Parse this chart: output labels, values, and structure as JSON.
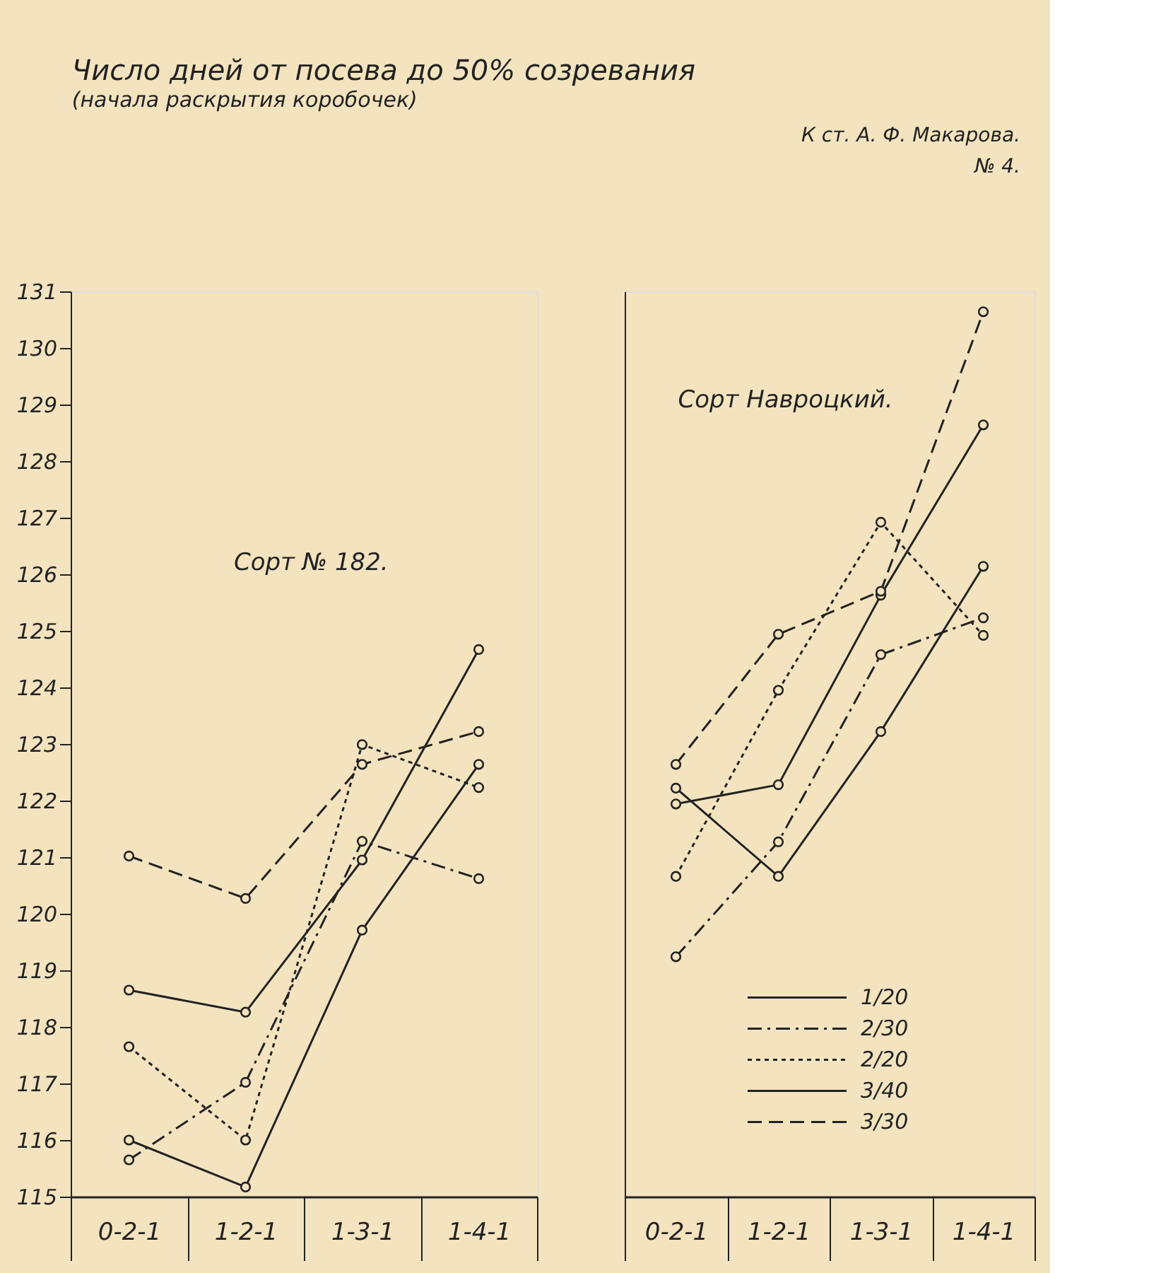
{
  "chart_data": [
    {
      "type": "line",
      "title": "Число дней от посева до 50% созревания",
      "subtitle": "(начала раскрытия коробочек)",
      "categories": [
        "0-2-1",
        "1-2-1",
        "1-3-1",
        "1-4-1"
      ],
      "ylim": [
        115,
        131
      ],
      "yticks": [
        115,
        116,
        117,
        118,
        119,
        120,
        121,
        122,
        123,
        124,
        125,
        126,
        127,
        128,
        129,
        130,
        131
      ],
      "grid": false,
      "legend": false,
      "marker": "circle",
      "annotations": [
        "Сорт № 182."
      ],
      "series": [
        {
          "color": "#222222",
          "line_style": "solid",
          "values": [
            116.0,
            115.17,
            119.71,
            122.64
          ]
        },
        {
          "color": "#222222",
          "line_style": "dashdot",
          "values": [
            115.65,
            117.02,
            121.28,
            120.62
          ]
        },
        {
          "color": "#222222",
          "line_style": "dotted",
          "values": [
            117.65,
            116.0,
            122.99,
            122.23
          ]
        },
        {
          "color": "#222222",
          "line_style": "solid",
          "values": [
            118.65,
            118.26,
            120.95,
            124.67
          ]
        },
        {
          "color": "#222222",
          "line_style": "dashed",
          "values": [
            121.02,
            120.27,
            122.64,
            123.22
          ]
        }
      ]
    },
    {
      "type": "line",
      "categories": [
        "0-2-1",
        "1-2-1",
        "1-3-1",
        "1-4-1"
      ],
      "ylim": [
        115,
        131
      ],
      "tick_labels": "x",
      "grid": false,
      "legend": "bottom",
      "marker": "circle",
      "annotations": [
        "Сорт Навроцкий.",
        "К ст. А. Ф. Макарова.",
        "№ 4."
      ],
      "series": [
        {
          "name": "1/20",
          "color": "#222222",
          "line_style": "solid",
          "values": [
            122.22,
            120.66,
            123.22,
            126.14
          ]
        },
        {
          "name": "2/30",
          "color": "#222222",
          "line_style": "dashdot",
          "values": [
            119.24,
            121.27,
            124.58,
            125.23
          ]
        },
        {
          "name": "2/20",
          "color": "#222222",
          "line_style": "dotted",
          "values": [
            120.66,
            123.95,
            126.92,
            124.92
          ]
        },
        {
          "name": "3/40",
          "color": "#222222",
          "line_style": "solid",
          "values": [
            121.94,
            122.28,
            125.63,
            128.64
          ]
        },
        {
          "name": "3/30",
          "color": "#222222",
          "line_style": "dashed",
          "values": [
            122.64,
            124.94,
            125.7,
            130.64
          ]
        }
      ]
    }
  ]
}
